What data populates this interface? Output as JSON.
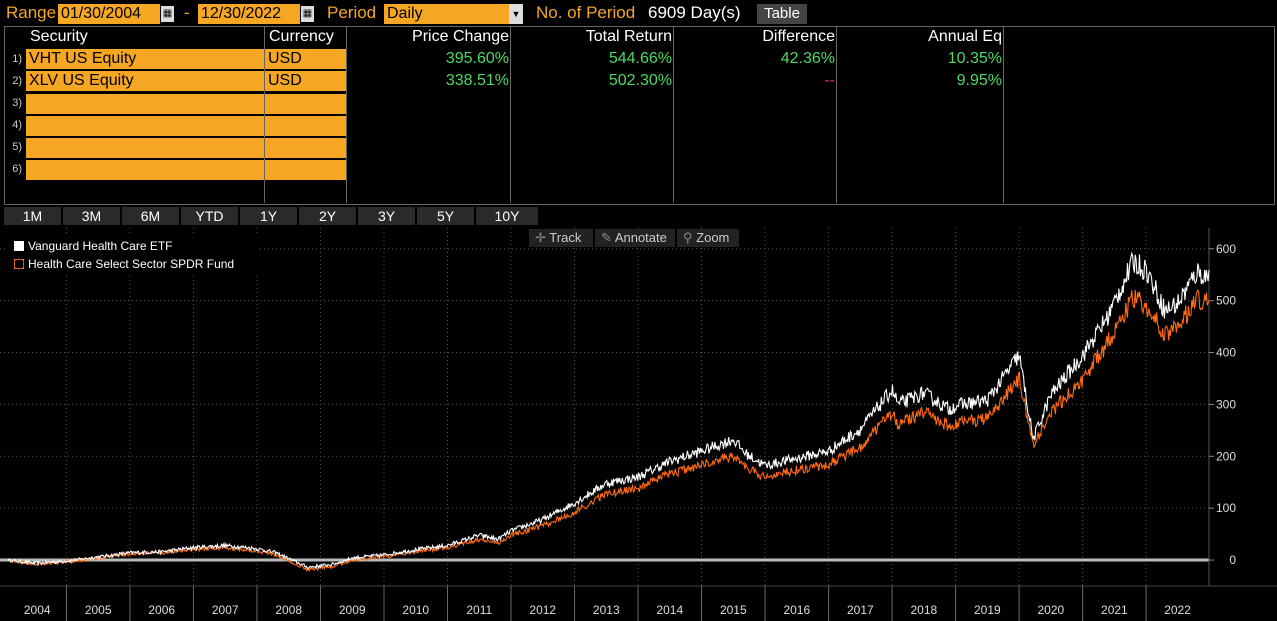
{
  "topbar": {
    "range_label": "Range",
    "start_date": "01/30/2004",
    "dash": "-",
    "end_date": "12/30/2022",
    "period_label": "Period",
    "period_value": "Daily",
    "num_period_label": "No. of Period",
    "num_period_value": "6909 Day(s)",
    "table_button": "Table"
  },
  "table": {
    "headers": [
      "Security",
      "Currency",
      "Price Change",
      "Total Return",
      "Difference",
      "Annual Eq"
    ],
    "row_numbers": [
      "1)",
      "2)",
      "3)",
      "4)",
      "5)",
      "6)"
    ],
    "rows": [
      {
        "security": "VHT US Equity",
        "currency": "USD",
        "price_change": "395.60%",
        "total_return": "544.66%",
        "difference": "42.36%",
        "annual_eq": "10.35%"
      },
      {
        "security": "XLV US Equity",
        "currency": "USD",
        "price_change": "338.51%",
        "total_return": "502.30%",
        "difference": "--",
        "annual_eq": "9.95%"
      }
    ]
  },
  "periods": [
    "1M",
    "3M",
    "6M",
    "YTD",
    "1Y",
    "2Y",
    "3Y",
    "5Y",
    "10Y"
  ],
  "tools": {
    "track": "Track",
    "annotate": "Annotate",
    "zoom": "Zoom",
    "track_icon": "crosshair-icon",
    "annotate_icon": "pencil-icon",
    "zoom_icon": "magnifier-icon"
  },
  "colors": {
    "accent": "#f5a623",
    "positive": "#4cd964",
    "series1": "#ffffff",
    "series2": "#ff6a13"
  },
  "chart_data": {
    "type": "line",
    "ylim": [
      -50,
      640
    ],
    "yticks": [
      0,
      100,
      200,
      300,
      400,
      500,
      600
    ],
    "xlim": [
      2004.08,
      2022.99
    ],
    "xticks": [
      "2004",
      "2005",
      "2006",
      "2007",
      "2008",
      "2009",
      "2010",
      "2011",
      "2012",
      "2013",
      "2014",
      "2015",
      "2016",
      "2017",
      "2018",
      "2019",
      "2020",
      "2021",
      "2022"
    ],
    "grid": true,
    "legend_position": "top-left",
    "series": [
      {
        "name": "Vanguard Health Care ETF",
        "color": "#ffffff",
        "x": [
          2004.08,
          2004.5,
          2005.0,
          2005.5,
          2006.0,
          2006.5,
          2007.0,
          2007.5,
          2008.0,
          2008.3,
          2008.8,
          2009.2,
          2009.5,
          2010.0,
          2010.5,
          2011.0,
          2011.5,
          2011.8,
          2012.0,
          2012.5,
          2013.0,
          2013.5,
          2014.0,
          2014.5,
          2015.0,
          2015.5,
          2015.7,
          2016.0,
          2016.5,
          2017.0,
          2017.5,
          2018.0,
          2018.1,
          2018.5,
          2018.9,
          2019.0,
          2019.5,
          2020.0,
          2020.15,
          2020.22,
          2020.5,
          2021.0,
          2021.4,
          2021.8,
          2022.0,
          2022.3,
          2022.5,
          2022.8,
          2022.99
        ],
        "y": [
          0,
          -6,
          -2,
          6,
          14,
          16,
          24,
          28,
          22,
          14,
          -14,
          -8,
          4,
          10,
          20,
          28,
          48,
          40,
          56,
          78,
          110,
          148,
          160,
          190,
          210,
          232,
          205,
          182,
          196,
          210,
          252,
          328,
          300,
          322,
          290,
          298,
          308,
          395,
          285,
          232,
          318,
          395,
          470,
          575,
          560,
          480,
          495,
          555,
          545
        ]
      },
      {
        "name": "Health Care Select Sector SPDR Fund",
        "color": "#ff6a13",
        "x": [
          2004.08,
          2004.5,
          2005.0,
          2005.5,
          2006.0,
          2006.5,
          2007.0,
          2007.5,
          2008.0,
          2008.3,
          2008.8,
          2009.2,
          2009.5,
          2010.0,
          2010.5,
          2011.0,
          2011.5,
          2011.8,
          2012.0,
          2012.5,
          2013.0,
          2013.5,
          2014.0,
          2014.5,
          2015.0,
          2015.5,
          2015.7,
          2016.0,
          2016.5,
          2017.0,
          2017.5,
          2018.0,
          2018.1,
          2018.5,
          2018.9,
          2019.0,
          2019.5,
          2020.0,
          2020.15,
          2020.22,
          2020.5,
          2021.0,
          2021.4,
          2021.8,
          2022.0,
          2022.3,
          2022.5,
          2022.8,
          2022.99
        ],
        "y": [
          0,
          -8,
          -4,
          4,
          12,
          14,
          20,
          24,
          18,
          10,
          -18,
          -12,
          0,
          6,
          16,
          24,
          40,
          32,
          48,
          66,
          92,
          128,
          138,
          166,
          184,
          200,
          178,
          160,
          174,
          184,
          218,
          285,
          262,
          284,
          258,
          264,
          272,
          350,
          262,
          220,
          285,
          348,
          420,
          505,
          490,
          435,
          448,
          505,
          500
        ]
      }
    ]
  }
}
